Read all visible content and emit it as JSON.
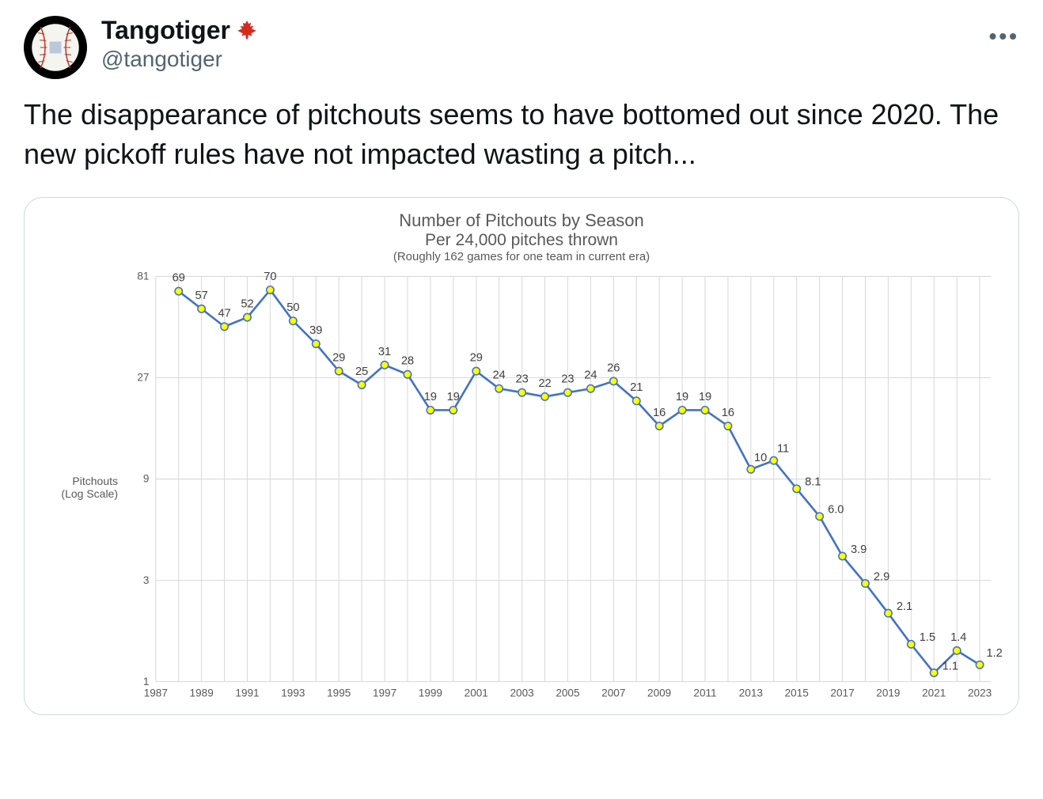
{
  "header": {
    "display_name": "Tangotiger",
    "handle": "@tangotiger"
  },
  "tweet_text": "The disappearance of pitchouts seems to have bottomed out since 2020.  The new pickoff rules have not impacted wasting a pitch...",
  "chart": {
    "type": "line",
    "title": "Number of Pitchouts by Season",
    "subtitle": "Per 24,000 pitches thrown",
    "note": "(Roughly 162 games for one team in current era)",
    "y_label_line1": "Pitchouts",
    "y_label_line2": "(Log Scale)",
    "x_ticks": [
      1987,
      1989,
      1991,
      1993,
      1995,
      1997,
      1999,
      2001,
      2003,
      2005,
      2007,
      2009,
      2011,
      2013,
      2015,
      2017,
      2019,
      2021,
      2023
    ],
    "y_ticks": [
      1,
      3,
      9,
      27,
      81
    ],
    "y_scale": "log",
    "xlim": [
      1987,
      2023.5
    ],
    "ylim": [
      1,
      81
    ],
    "line_color": "#4472c4",
    "marker_fill": "#ffff00",
    "marker_stroke": "#4472c4",
    "marker_radius": 4.5,
    "line_width": 2.5,
    "grid_color": "#d9d9d9",
    "background_color": "#ffffff",
    "text_color": "#595959",
    "label_color": "#404040",
    "title_fontsize": 22,
    "subtitle_fontsize": 21,
    "note_fontsize": 15,
    "axis_fontsize": 13,
    "data_label_fontsize": 14,
    "data": [
      {
        "year": 1988,
        "value": 69,
        "label": "69"
      },
      {
        "year": 1989,
        "value": 57,
        "label": "57"
      },
      {
        "year": 1990,
        "value": 47,
        "label": "47"
      },
      {
        "year": 1991,
        "value": 52,
        "label": "52"
      },
      {
        "year": 1992,
        "value": 70,
        "label": "70"
      },
      {
        "year": 1993,
        "value": 50,
        "label": "50"
      },
      {
        "year": 1994,
        "value": 39,
        "label": "39"
      },
      {
        "year": 1995,
        "value": 29,
        "label": "29"
      },
      {
        "year": 1996,
        "value": 25,
        "label": "25"
      },
      {
        "year": 1997,
        "value": 31,
        "label": "31"
      },
      {
        "year": 1998,
        "value": 28,
        "label": "28"
      },
      {
        "year": 1999,
        "value": 19,
        "label": "19"
      },
      {
        "year": 2000,
        "value": 19,
        "label": "19"
      },
      {
        "year": 2001,
        "value": 29,
        "label": "29"
      },
      {
        "year": 2002,
        "value": 24,
        "label": "24"
      },
      {
        "year": 2003,
        "value": 23,
        "label": "23"
      },
      {
        "year": 2004,
        "value": 22,
        "label": "22"
      },
      {
        "year": 2005,
        "value": 23,
        "label": "23"
      },
      {
        "year": 2006,
        "value": 24,
        "label": "24"
      },
      {
        "year": 2007,
        "value": 26,
        "label": "26"
      },
      {
        "year": 2008,
        "value": 21,
        "label": "21"
      },
      {
        "year": 2009,
        "value": 16,
        "label": "16"
      },
      {
        "year": 2010,
        "value": 19,
        "label": "19"
      },
      {
        "year": 2011,
        "value": 19,
        "label": "19"
      },
      {
        "year": 2012,
        "value": 16,
        "label": "16"
      },
      {
        "year": 2013,
        "value": 10,
        "label": "10"
      },
      {
        "year": 2014,
        "value": 11,
        "label": "11"
      },
      {
        "year": 2015,
        "value": 8.1,
        "label": "8.1"
      },
      {
        "year": 2016,
        "value": 6.0,
        "label": "6.0"
      },
      {
        "year": 2017,
        "value": 3.9,
        "label": "3.9"
      },
      {
        "year": 2018,
        "value": 2.9,
        "label": "2.9"
      },
      {
        "year": 2019,
        "value": 2.1,
        "label": "2.1"
      },
      {
        "year": 2020,
        "value": 1.5,
        "label": "1.5"
      },
      {
        "year": 2021,
        "value": 1.1,
        "label": "1.1"
      },
      {
        "year": 2022,
        "value": 1.4,
        "label": "1.4"
      },
      {
        "year": 2023,
        "value": 1.2,
        "label": "1.2"
      }
    ]
  }
}
